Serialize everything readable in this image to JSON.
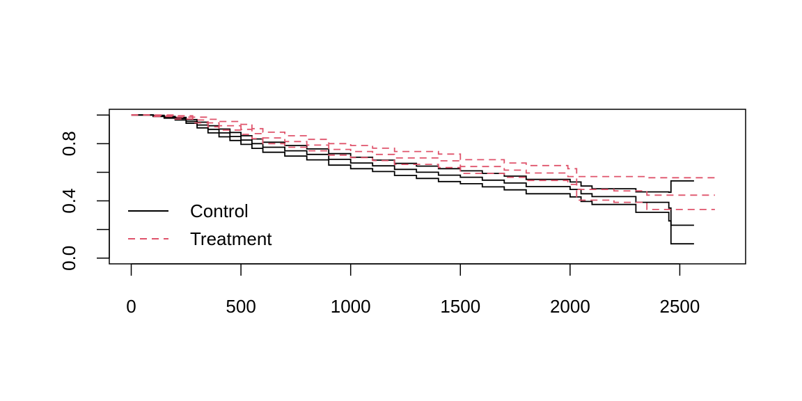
{
  "chart_data": {
    "type": "line",
    "subtype": "step (Kaplan-Meier survival curves with confidence bands)",
    "title": "",
    "xlabel": "",
    "ylabel": "",
    "xlim": [
      -100,
      2800
    ],
    "ylim": [
      -0.04,
      1.04
    ],
    "x_ticks": [
      {
        "value": 0,
        "label": "0"
      },
      {
        "value": 500,
        "label": "500"
      },
      {
        "value": 1000,
        "label": "1000"
      },
      {
        "value": 1500,
        "label": "1500"
      },
      {
        "value": 2000,
        "label": "2000"
      },
      {
        "value": 2500,
        "label": "2500"
      }
    ],
    "y_ticks": [
      {
        "value": 0.0,
        "label": "0.0"
      },
      {
        "value": 0.2,
        "label": ""
      },
      {
        "value": 0.4,
        "label": "0.4"
      },
      {
        "value": 0.6,
        "label": ""
      },
      {
        "value": 0.8,
        "label": "0.8"
      },
      {
        "value": 1.0,
        "label": ""
      }
    ],
    "grid": false,
    "legend": {
      "position": "bottom-left",
      "entries": [
        {
          "label": "Control",
          "color": "#000000",
          "dash": "solid"
        },
        {
          "label": "Treatment",
          "color": "#DF536B",
          "dash": "dashed"
        }
      ]
    },
    "series": [
      {
        "name": "Control",
        "role": "estimate",
        "color": "#000000",
        "dash": "solid",
        "points": [
          [
            0,
            1.0
          ],
          [
            100,
            0.995
          ],
          [
            150,
            0.985
          ],
          [
            200,
            0.975
          ],
          [
            250,
            0.955
          ],
          [
            300,
            0.93
          ],
          [
            350,
            0.9
          ],
          [
            400,
            0.875
          ],
          [
            450,
            0.85
          ],
          [
            500,
            0.825
          ],
          [
            550,
            0.8
          ],
          [
            600,
            0.775
          ],
          [
            700,
            0.75
          ],
          [
            800,
            0.725
          ],
          [
            900,
            0.69
          ],
          [
            1000,
            0.665
          ],
          [
            1100,
            0.645
          ],
          [
            1200,
            0.62
          ],
          [
            1300,
            0.6
          ],
          [
            1400,
            0.58
          ],
          [
            1500,
            0.565
          ],
          [
            1600,
            0.545
          ],
          [
            1700,
            0.525
          ],
          [
            1800,
            0.5
          ],
          [
            2000,
            0.48
          ],
          [
            2050,
            0.45
          ],
          [
            2100,
            0.43
          ],
          [
            2300,
            0.39
          ],
          [
            2450,
            0.35
          ],
          [
            2460,
            0.23
          ],
          [
            2565,
            0.23
          ]
        ]
      },
      {
        "name": "Control",
        "role": "upper 95% CI",
        "color": "#000000",
        "dash": "solid",
        "points": [
          [
            0,
            1.0
          ],
          [
            100,
            0.998
          ],
          [
            150,
            0.99
          ],
          [
            200,
            0.983
          ],
          [
            250,
            0.968
          ],
          [
            300,
            0.95
          ],
          [
            350,
            0.925
          ],
          [
            400,
            0.902
          ],
          [
            450,
            0.878
          ],
          [
            500,
            0.855
          ],
          [
            550,
            0.833
          ],
          [
            600,
            0.81
          ],
          [
            700,
            0.787
          ],
          [
            800,
            0.763
          ],
          [
            900,
            0.73
          ],
          [
            1000,
            0.705
          ],
          [
            1100,
            0.685
          ],
          [
            1200,
            0.662
          ],
          [
            1300,
            0.643
          ],
          [
            1400,
            0.625
          ],
          [
            1500,
            0.61
          ],
          [
            1600,
            0.592
          ],
          [
            1700,
            0.573
          ],
          [
            1800,
            0.55
          ],
          [
            2000,
            0.532
          ],
          [
            2050,
            0.504
          ],
          [
            2100,
            0.485
          ],
          [
            2300,
            0.463
          ],
          [
            2450,
            0.46
          ],
          [
            2460,
            0.54
          ],
          [
            2565,
            0.54
          ]
        ]
      },
      {
        "name": "Control",
        "role": "lower 95% CI",
        "color": "#000000",
        "dash": "solid",
        "points": [
          [
            0,
            1.0
          ],
          [
            100,
            0.99
          ],
          [
            150,
            0.978
          ],
          [
            200,
            0.965
          ],
          [
            250,
            0.942
          ],
          [
            300,
            0.91
          ],
          [
            350,
            0.875
          ],
          [
            400,
            0.848
          ],
          [
            450,
            0.822
          ],
          [
            500,
            0.795
          ],
          [
            550,
            0.767
          ],
          [
            600,
            0.74
          ],
          [
            700,
            0.713
          ],
          [
            800,
            0.687
          ],
          [
            900,
            0.65
          ],
          [
            1000,
            0.625
          ],
          [
            1100,
            0.605
          ],
          [
            1200,
            0.578
          ],
          [
            1300,
            0.557
          ],
          [
            1400,
            0.535
          ],
          [
            1500,
            0.52
          ],
          [
            1600,
            0.498
          ],
          [
            1700,
            0.477
          ],
          [
            1800,
            0.45
          ],
          [
            2000,
            0.428
          ],
          [
            2050,
            0.396
          ],
          [
            2100,
            0.375
          ],
          [
            2300,
            0.32
          ],
          [
            2450,
            0.26
          ],
          [
            2460,
            0.1
          ],
          [
            2565,
            0.1
          ]
        ]
      },
      {
        "name": "Treatment",
        "role": "estimate",
        "color": "#DF536B",
        "dash": "dashed",
        "points": [
          [
            0,
            1.0
          ],
          [
            100,
            0.995
          ],
          [
            200,
            0.985
          ],
          [
            280,
            0.965
          ],
          [
            350,
            0.945
          ],
          [
            400,
            0.925
          ],
          [
            500,
            0.9
          ],
          [
            550,
            0.87
          ],
          [
            600,
            0.84
          ],
          [
            700,
            0.815
          ],
          [
            800,
            0.79
          ],
          [
            900,
            0.76
          ],
          [
            1000,
            0.745
          ],
          [
            1100,
            0.725
          ],
          [
            1200,
            0.7
          ],
          [
            1400,
            0.68
          ],
          [
            1500,
            0.64
          ],
          [
            1700,
            0.615
          ],
          [
            1800,
            0.595
          ],
          [
            1990,
            0.57
          ],
          [
            2030,
            0.48
          ],
          [
            2200,
            0.47
          ],
          [
            2350,
            0.44
          ],
          [
            2660,
            0.44
          ]
        ]
      },
      {
        "name": "Treatment",
        "role": "upper 95% CI",
        "color": "#DF536B",
        "dash": "dashed",
        "points": [
          [
            0,
            1.0
          ],
          [
            100,
            1.0
          ],
          [
            200,
            0.995
          ],
          [
            280,
            0.985
          ],
          [
            350,
            0.97
          ],
          [
            400,
            0.955
          ],
          [
            500,
            0.935
          ],
          [
            550,
            0.905
          ],
          [
            600,
            0.88
          ],
          [
            700,
            0.855
          ],
          [
            800,
            0.83
          ],
          [
            900,
            0.8
          ],
          [
            1000,
            0.787
          ],
          [
            1100,
            0.768
          ],
          [
            1200,
            0.745
          ],
          [
            1400,
            0.727
          ],
          [
            1500,
            0.688
          ],
          [
            1700,
            0.665
          ],
          [
            1800,
            0.647
          ],
          [
            1990,
            0.625
          ],
          [
            2030,
            0.57
          ],
          [
            2200,
            0.57
          ],
          [
            2350,
            0.562
          ],
          [
            2660,
            0.562
          ]
        ]
      },
      {
        "name": "Treatment",
        "role": "lower 95% CI",
        "color": "#DF536B",
        "dash": "dashed",
        "points": [
          [
            0,
            1.0
          ],
          [
            100,
            0.99
          ],
          [
            200,
            0.972
          ],
          [
            280,
            0.945
          ],
          [
            350,
            0.918
          ],
          [
            400,
            0.895
          ],
          [
            500,
            0.865
          ],
          [
            550,
            0.835
          ],
          [
            600,
            0.8
          ],
          [
            700,
            0.775
          ],
          [
            800,
            0.75
          ],
          [
            900,
            0.72
          ],
          [
            1000,
            0.703
          ],
          [
            1100,
            0.682
          ],
          [
            1200,
            0.655
          ],
          [
            1400,
            0.633
          ],
          [
            1500,
            0.592
          ],
          [
            1700,
            0.565
          ],
          [
            1800,
            0.543
          ],
          [
            1990,
            0.515
          ],
          [
            2030,
            0.405
          ],
          [
            2200,
            0.39
          ],
          [
            2350,
            0.34
          ],
          [
            2660,
            0.34
          ]
        ]
      }
    ]
  }
}
